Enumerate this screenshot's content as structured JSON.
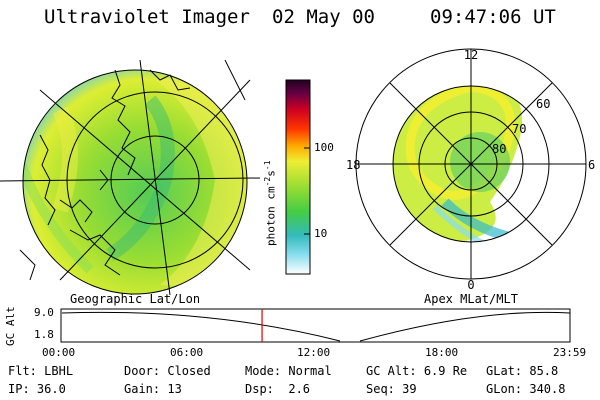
{
  "header": {
    "instrument": "Ultraviolet Imager",
    "date": "02 May 00",
    "time": "09:47:06 UT"
  },
  "left_map": {
    "caption": "Geographic Lat/Lon"
  },
  "right_map": {
    "caption": "Apex MLat/MLT",
    "mlt_labels": [
      "12",
      "18",
      "6",
      "0"
    ],
    "lat_labels": [
      "60",
      "70",
      "80"
    ]
  },
  "colorbar": {
    "unit_label": "photon cm",
    "unit_exp1": "-2",
    "unit_mid": "s",
    "unit_exp2": "-1",
    "tick_labels": [
      "100",
      "10"
    ]
  },
  "altitude_plot": {
    "ylabel": "GC Alt",
    "y_ticks": [
      "9.0",
      "1.8"
    ],
    "x_ticks": [
      "00:00",
      "06:00",
      "12:00",
      "18:00",
      "23:59"
    ],
    "current_time_fraction": 0.395,
    "marker_color": "#e00000"
  },
  "info": {
    "filter_label": "Flt:",
    "filter_value": "LBHL",
    "ip_label": "IP:",
    "ip_value": "36.0",
    "door_label": "Door:",
    "door_value": "Closed",
    "gain_label": "Gain:",
    "gain_value": "13",
    "mode_label": "Mode:",
    "mode_value": "Normal",
    "dsp_label": "Dsp:",
    "dsp_value": "2.6",
    "gcalt_label": "GC Alt:",
    "gcalt_value": "6.9 Re",
    "seq_label": "Seq:",
    "seq_value": "39",
    "glat_label": "GLat:",
    "glat_value": "85.8",
    "glon_label": "GLon:",
    "glon_value": "340.8"
  },
  "colors": {
    "background": "#ffffff",
    "foreground": "#000000",
    "colorbar_stops": [
      "#ffffff",
      "#66ccee",
      "#33bbbb",
      "#44cc44",
      "#99dd33",
      "#eeee33",
      "#ffaa00",
      "#ff3300",
      "#cc0022",
      "#330033"
    ]
  }
}
